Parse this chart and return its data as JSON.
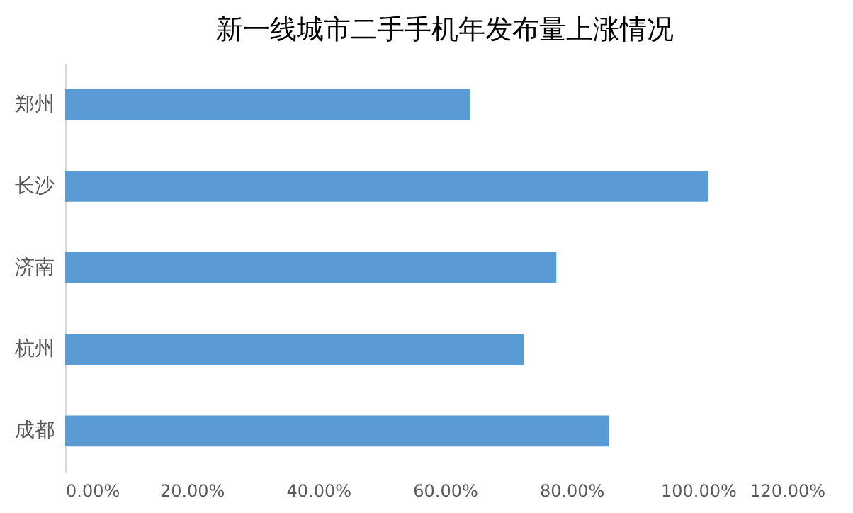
{
  "chart_data": {
    "type": "bar",
    "orientation": "horizontal",
    "title": "新一线城市二手手机年发布量上涨情况",
    "categories": [
      "郑州",
      "长沙",
      "济南",
      "杭州",
      "成都"
    ],
    "values": [
      64.0,
      101.6,
      77.6,
      72.5,
      85.9
    ],
    "color": "#5b9bd5",
    "xlim": [
      0,
      120
    ],
    "xticks": [
      {
        "value": 0,
        "label": "0.00%"
      },
      {
        "value": 20,
        "label": "20.00%"
      },
      {
        "value": 40,
        "label": "40.00%"
      },
      {
        "value": 60,
        "label": "60.00%"
      },
      {
        "value": 80,
        "label": "80.00%"
      },
      {
        "value": 100,
        "label": "100.00%"
      },
      {
        "value": 120,
        "label": "120.00%"
      }
    ],
    "grid": false,
    "legend": false
  }
}
